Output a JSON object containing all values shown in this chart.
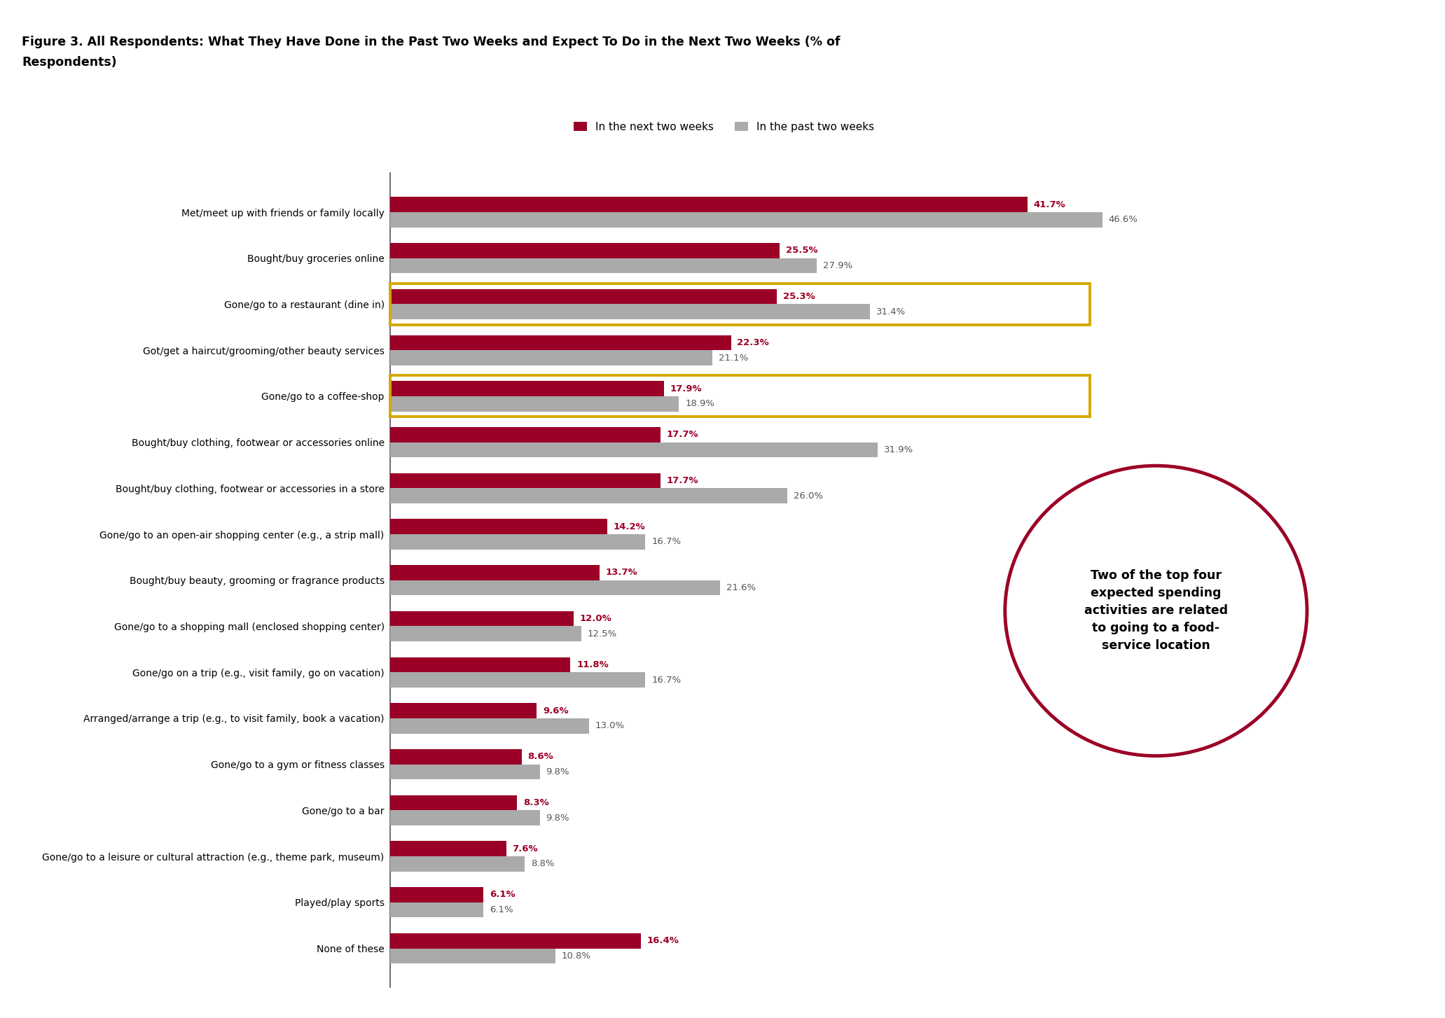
{
  "title_line1": "Figure 3. All Respondents: What They Have Done in the Past Two Weeks and Expect To Do in the Next Two Weeks (% of",
  "title_line2": "Respondents)",
  "legend_next": "In the next two weeks",
  "legend_past": "In the past two weeks",
  "categories": [
    "Met/meet up with friends or family locally",
    "Bought/buy groceries online",
    "Gone/go to a restaurant (dine in)",
    "Got/get a haircut/grooming/other beauty services",
    "Gone/go to a coffee-shop",
    "Bought/buy clothing, footwear or accessories online",
    "Bought/buy clothing, footwear or accessories in a store",
    "Gone/go to an open-air shopping center (e.g., a strip mall)",
    "Bought/buy beauty, grooming or fragrance products",
    "Gone/go to a shopping mall (enclosed shopping center)",
    "Gone/go on a trip (e.g., visit family, go on vacation)",
    "Arranged/arrange a trip (e.g., to visit family, book a vacation)",
    "Gone/go to a gym or fitness classes",
    "Gone/go to a bar",
    "Gone/go to a leisure or cultural attraction (e.g., theme park, museum)",
    "Played/play sports",
    "None of these"
  ],
  "next_two_weeks": [
    41.7,
    25.5,
    25.3,
    22.3,
    17.9,
    17.7,
    17.7,
    14.2,
    13.7,
    12.0,
    11.8,
    9.6,
    8.6,
    8.3,
    7.6,
    6.1,
    16.4
  ],
  "past_two_weeks": [
    46.6,
    27.9,
    31.4,
    21.1,
    18.9,
    31.9,
    26.0,
    16.7,
    21.6,
    12.5,
    16.7,
    13.0,
    9.8,
    9.8,
    8.8,
    6.1,
    10.8
  ],
  "color_next": "#9B0026",
  "color_past": "#AAAAAA",
  "color_label_next": "#9B0026",
  "color_label_past": "#555555",
  "highlight_rows": [
    2,
    4
  ],
  "highlight_color": "#D4A800",
  "annotation_text": "Two of the top four\nexpected spending\nactivities are related\nto going to a food-\nservice location",
  "background_color": "#FFFFFF",
  "bar_height": 0.33,
  "xlim_max": 52
}
